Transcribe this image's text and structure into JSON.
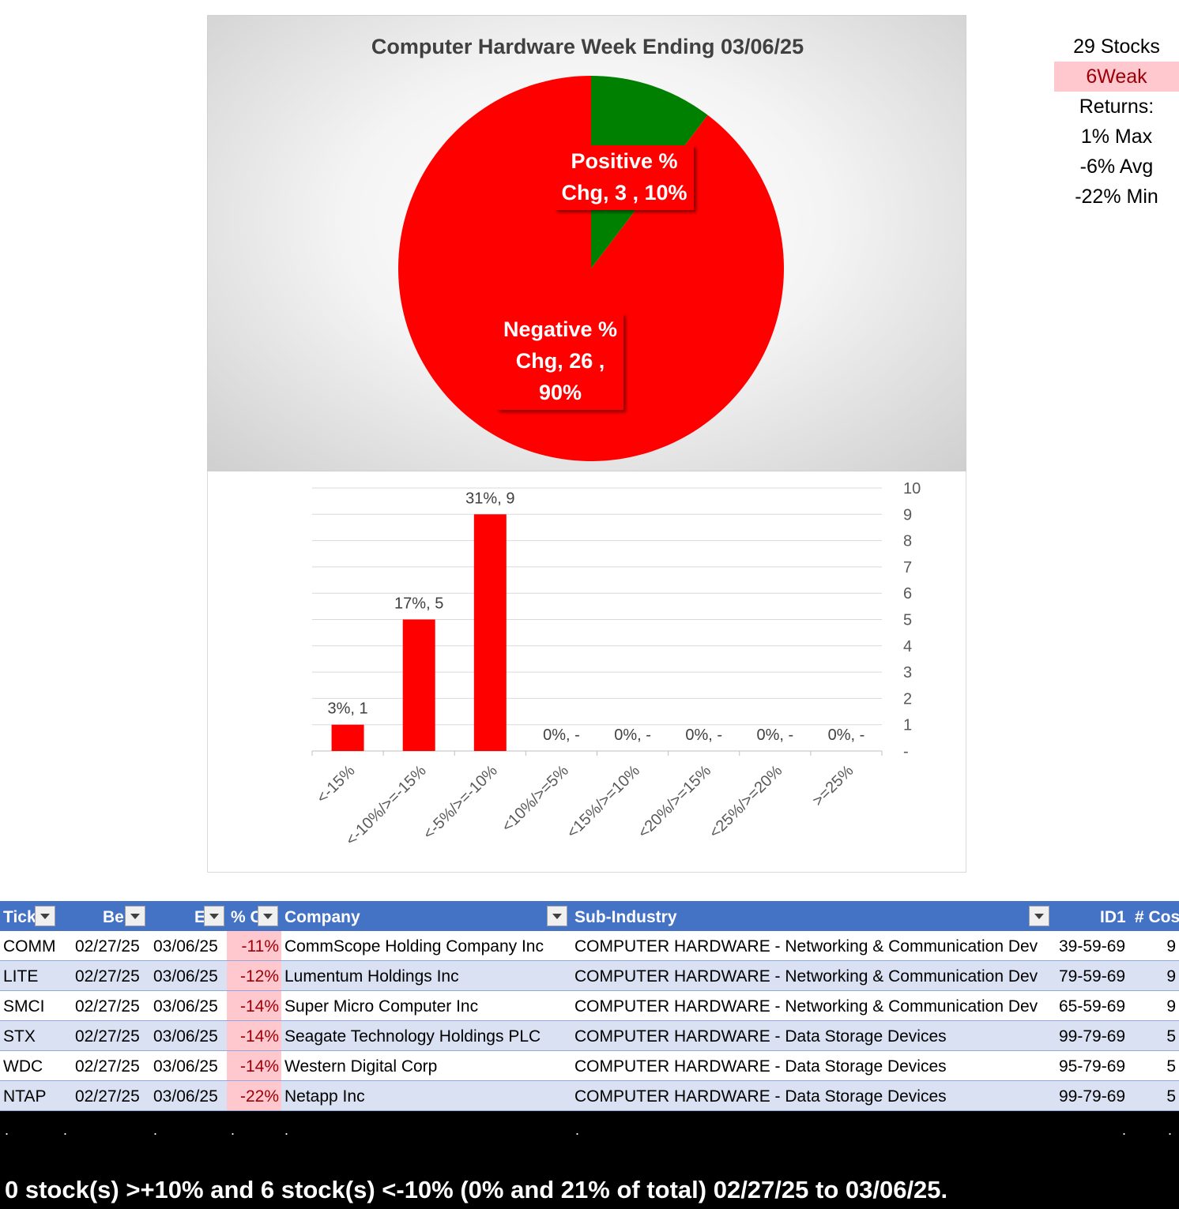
{
  "chart_data": [
    {
      "type": "pie",
      "title": "Computer Hardware Week Ending 03/06/25",
      "slices": [
        {
          "name": "Positive % Chg",
          "value": 3,
          "percent": "10%",
          "color": "#008000",
          "label_lines": [
            "Positive %",
            "Chg,  3 , 10%"
          ]
        },
        {
          "name": "Negative % Chg",
          "value": 26,
          "percent": "90%",
          "color": "#ff0000",
          "label_lines": [
            "Negative %",
            "Chg,  26 ,",
            "90%"
          ]
        }
      ]
    },
    {
      "type": "bar",
      "title": "",
      "categories": [
        "<-15%",
        "<-10%/>=-15%",
        "<-5%/>=-10%",
        "<10%/>=5%",
        "<15%/>=10%",
        "<20%/>=15%",
        "<25%/>=20%",
        ">=25%"
      ],
      "values": [
        1,
        5,
        9,
        0,
        0,
        0,
        0,
        0
      ],
      "data_labels": [
        "3%,  1",
        "17%,  5",
        "31%,  9",
        "0%,  -",
        "0%,  -",
        "0%,  -",
        "0%,  -",
        "0%,  -"
      ],
      "ylim": [
        0,
        10
      ],
      "y_ticks": [
        "-",
        "1",
        "2",
        "3",
        "4",
        "5",
        "6",
        "7",
        "8",
        "9",
        "10"
      ],
      "y_axis_side": "right",
      "grid": true,
      "bar_color": "#ff0000"
    }
  ],
  "summary": {
    "stocks": "29 Stocks",
    "weak": "6Weak",
    "returns_label": "Returns:",
    "max": "1% Max",
    "avg": "-6% Avg",
    "min": "-22% Min"
  },
  "table": {
    "headers": [
      "Tick",
      "Be",
      "E",
      "% C",
      "Company",
      "Sub-Industry",
      "ID1",
      "# Cos"
    ],
    "rows": [
      {
        "ticker": "COMM",
        "begin": "02/27/25",
        "end": "03/06/25",
        "pct": "-11%",
        "company": "CommScope Holding Company Inc",
        "sub": "COMPUTER HARDWARE - Networking & Communication Dev",
        "id1": "39-59-69",
        "cos": "9"
      },
      {
        "ticker": "LITE",
        "begin": "02/27/25",
        "end": "03/06/25",
        "pct": "-12%",
        "company": "Lumentum Holdings Inc",
        "sub": "COMPUTER HARDWARE - Networking & Communication Dev",
        "id1": "79-59-69",
        "cos": "9"
      },
      {
        "ticker": "SMCI",
        "begin": "02/27/25",
        "end": "03/06/25",
        "pct": "-14%",
        "company": "Super Micro Computer Inc",
        "sub": "COMPUTER HARDWARE - Networking & Communication Dev",
        "id1": "65-59-69",
        "cos": "9"
      },
      {
        "ticker": "STX",
        "begin": "02/27/25",
        "end": "03/06/25",
        "pct": "-14%",
        "company": "Seagate Technology Holdings PLC",
        "sub": "COMPUTER HARDWARE - Data Storage Devices",
        "id1": "99-79-69",
        "cos": "5"
      },
      {
        "ticker": "WDC",
        "begin": "02/27/25",
        "end": "03/06/25",
        "pct": "-14%",
        "company": "Western Digital Corp",
        "sub": "COMPUTER HARDWARE - Data Storage Devices",
        "id1": "95-79-69",
        "cos": "5"
      },
      {
        "ticker": "NTAP",
        "begin": "02/27/25",
        "end": "03/06/25",
        "pct": "-22%",
        "company": "Netapp Inc",
        "sub": "COMPUTER HARDWARE - Data Storage Devices",
        "id1": "99-79-69",
        "cos": "5"
      }
    ]
  },
  "footer": {
    "dot": ".",
    "text": "0 stock(s) >+10% and 6 stock(s) <-10% (0% and 21% of total) 02/27/25 to 03/06/25."
  }
}
